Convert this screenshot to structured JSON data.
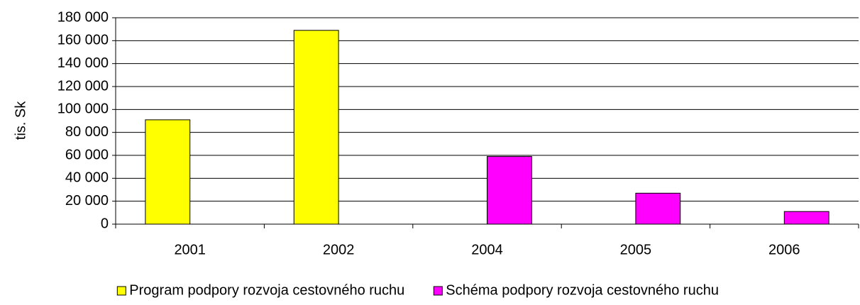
{
  "chart_data": {
    "type": "bar",
    "y_label": "tis. Sk",
    "categories": [
      "2001",
      "2002",
      "2004",
      "2005",
      "2006"
    ],
    "series": [
      {
        "name": "Program podpory rozvoja cestovného ruchu",
        "color": "#ffff00",
        "values": [
          91000,
          169000,
          null,
          null,
          null
        ]
      },
      {
        "name": "Schéma podpory rozvoja cestovného ruchu",
        "color": "#ff00ff",
        "values": [
          null,
          null,
          59000,
          27000,
          11000
        ]
      }
    ],
    "ylim": [
      0,
      180000
    ],
    "yticks": [
      0,
      {
        "value": 20000,
        "label": "20 000"
      },
      {
        "value": 40000,
        "label": "40 000"
      },
      {
        "value": 60000,
        "label": "60 000"
      },
      {
        "value": 80000,
        "label": "80 000"
      },
      {
        "value": 100000,
        "label": "100 000"
      },
      {
        "value": 120000,
        "label": "120 000"
      },
      {
        "value": 140000,
        "label": "140 000"
      },
      {
        "value": 160000,
        "label": "160 000"
      },
      {
        "value": 180000,
        "label": "180 000"
      }
    ],
    "grid": true,
    "legend": "bottom"
  }
}
